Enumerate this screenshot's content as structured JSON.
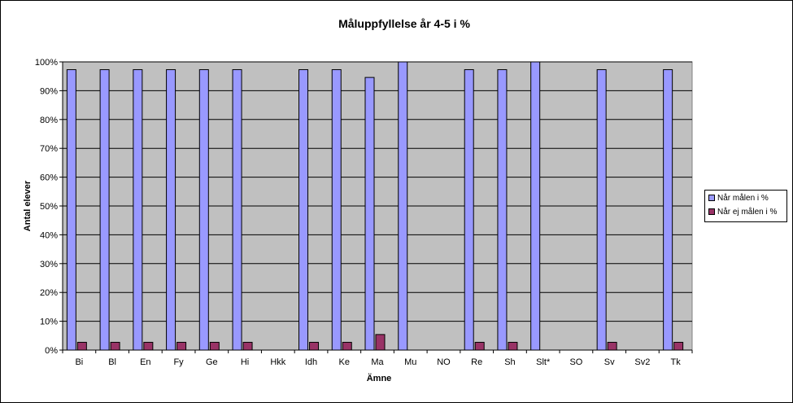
{
  "chart_data": {
    "type": "bar",
    "title": "Måluppfyllelse  år 4-5 i %",
    "xlabel": "Ämne",
    "ylabel": "Antal elever",
    "ylim": [
      0,
      100
    ],
    "yticks": [
      "0%",
      "10%",
      "20%",
      "30%",
      "40%",
      "50%",
      "60%",
      "70%",
      "80%",
      "90%",
      "100%"
    ],
    "categories": [
      "Bi",
      "Bl",
      "En",
      "Fy",
      "Ge",
      "Hi",
      "Hkk",
      "Idh",
      "Ke",
      "Ma",
      "Mu",
      "NO",
      "Re",
      "Sh",
      "Slt*",
      "SO",
      "Sv",
      "Sv2",
      "Tk"
    ],
    "series": [
      {
        "name": "Når målen i %",
        "color": "#9999FF",
        "values": [
          97.3,
          97.3,
          97.3,
          97.3,
          97.3,
          97.3,
          null,
          97.3,
          97.3,
          94.6,
          100,
          null,
          97.3,
          97.3,
          100,
          null,
          97.3,
          null,
          97.3
        ]
      },
      {
        "name": "Når ej målen i %",
        "color": "#993366",
        "values": [
          2.7,
          2.7,
          2.7,
          2.7,
          2.7,
          2.7,
          null,
          2.7,
          2.7,
          5.4,
          null,
          null,
          2.7,
          2.7,
          null,
          null,
          2.7,
          null,
          2.7
        ]
      }
    ],
    "grid": true,
    "plot_background": "#C0C0C0",
    "legend_position": "right"
  }
}
